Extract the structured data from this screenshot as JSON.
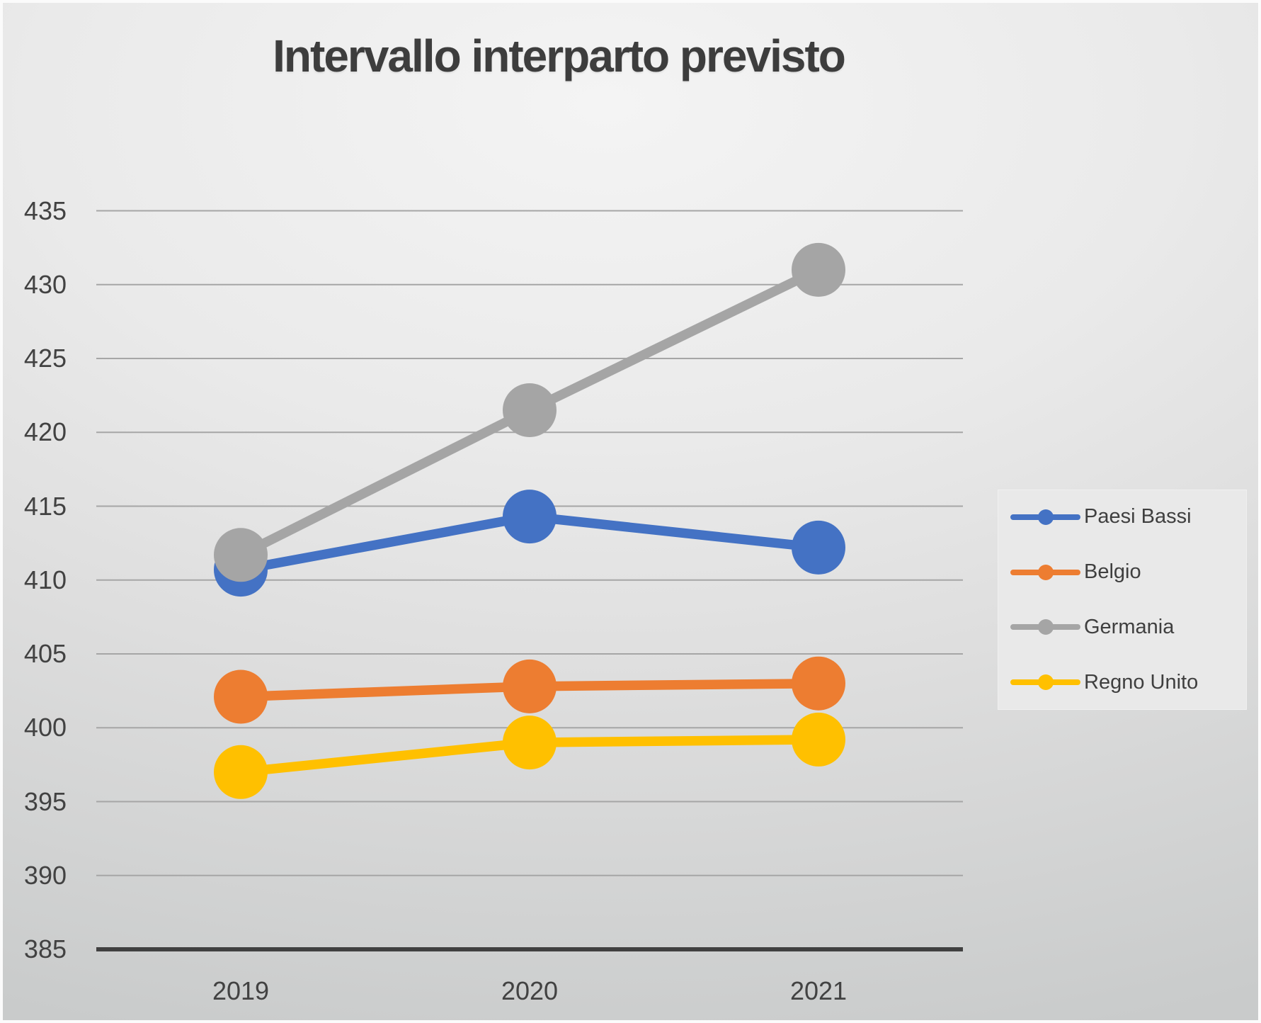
{
  "chart_data": {
    "type": "line",
    "title": "Intervallo interparto previsto",
    "categories": [
      "2019",
      "2020",
      "2021"
    ],
    "series": [
      {
        "name": "Paesi Bassi",
        "color": "#4472C4",
        "values": [
          410.7,
          414.3,
          412.2
        ]
      },
      {
        "name": "Belgio",
        "color": "#ED7D31",
        "values": [
          402.1,
          402.8,
          403.0
        ]
      },
      {
        "name": "Germania",
        "color": "#A5A5A5",
        "values": [
          411.7,
          421.5,
          431.0
        ]
      },
      {
        "name": "Regno Unito",
        "color": "#FFC000",
        "values": [
          397.0,
          399.0,
          399.2
        ]
      }
    ],
    "ylim": [
      385,
      435
    ],
    "yticks": [
      385,
      390,
      395,
      400,
      405,
      410,
      415,
      420,
      425,
      430,
      435
    ],
    "xlabel": "",
    "ylabel": "",
    "grid": true,
    "legend_position": "right",
    "marker_style": "circle"
  },
  "colors": {
    "gridline": "#a6a6a6",
    "axis_line": "#404040",
    "tick_text": "#424242",
    "title_text": "#3d3d3d",
    "legend_bg": "#e9e9e9"
  }
}
